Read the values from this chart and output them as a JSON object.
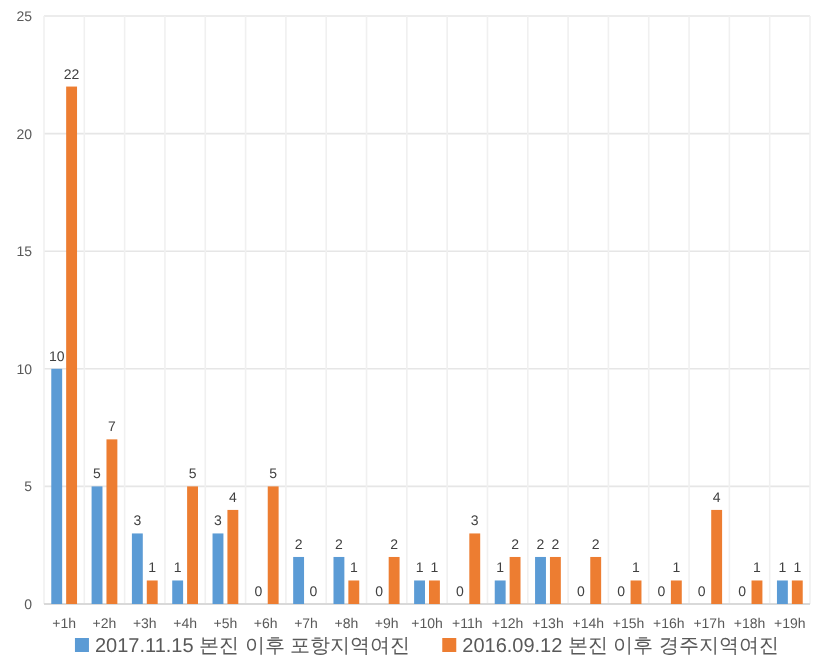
{
  "chart_data": {
    "type": "bar",
    "categories": [
      "+1h",
      "+2h",
      "+3h",
      "+4h",
      "+5h",
      "+6h",
      "+7h",
      "+8h",
      "+9h",
      "+10h",
      "+11h",
      "+12h",
      "+13h",
      "+14h",
      "+15h",
      "+16h",
      "+17h",
      "+18h",
      "+19h"
    ],
    "series": [
      {
        "name": "2017.11.15 본진 이후 포항지역여진",
        "color": "#5b9bd5",
        "values": [
          10,
          5,
          3,
          1,
          3,
          0,
          2,
          2,
          0,
          1,
          0,
          1,
          2,
          0,
          0,
          0,
          0,
          0,
          1
        ]
      },
      {
        "name": "2016.09.12 본진 이후 경주지역여진",
        "color": "#ed7d31",
        "values": [
          22,
          7,
          1,
          5,
          4,
          5,
          0,
          1,
          2,
          1,
          3,
          2,
          2,
          2,
          1,
          1,
          4,
          1,
          1
        ]
      }
    ],
    "ylim": [
      0,
      25
    ],
    "yticks": [
      0,
      5,
      10,
      15,
      20,
      25
    ],
    "grid": true,
    "data_labels": true,
    "legend": "bottom"
  }
}
